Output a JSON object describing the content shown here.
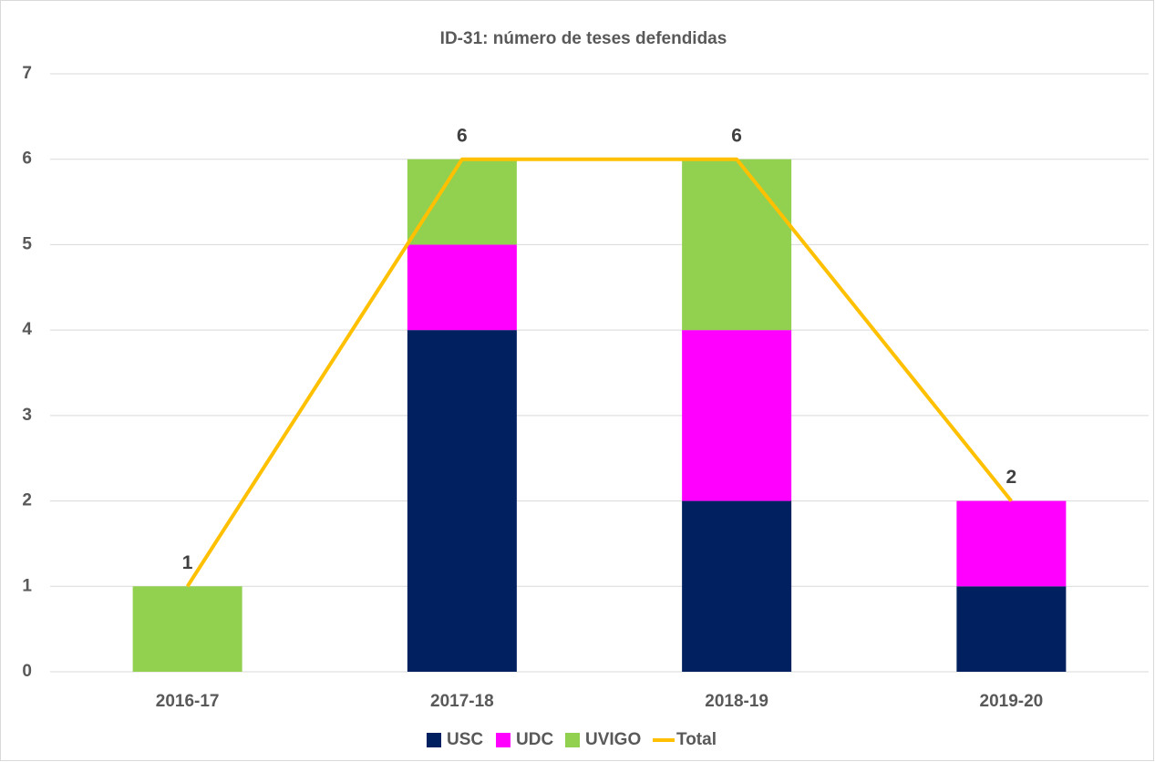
{
  "chart_data": {
    "type": "bar",
    "stacked": true,
    "title": "ID-31: número de teses defendidas",
    "categories": [
      "2016-17",
      "2017-18",
      "2018-19",
      "2019-20"
    ],
    "series": [
      {
        "name": "USC",
        "color": "#002060",
        "values": [
          0,
          4,
          2,
          1
        ]
      },
      {
        "name": "UDC",
        "color": "#ff00ff",
        "values": [
          0,
          1,
          2,
          1
        ]
      },
      {
        "name": "UVIGO",
        "color": "#92d050",
        "values": [
          1,
          1,
          2,
          0
        ]
      },
      {
        "name": "Total",
        "color": "#ffc000",
        "type": "line",
        "values": [
          1,
          6,
          6,
          2
        ],
        "data_labels": true
      }
    ],
    "ylim": [
      0,
      7
    ],
    "yticks": [
      0,
      1,
      2,
      3,
      4,
      5,
      6,
      7
    ],
    "grid": true,
    "legend": "bottom"
  }
}
